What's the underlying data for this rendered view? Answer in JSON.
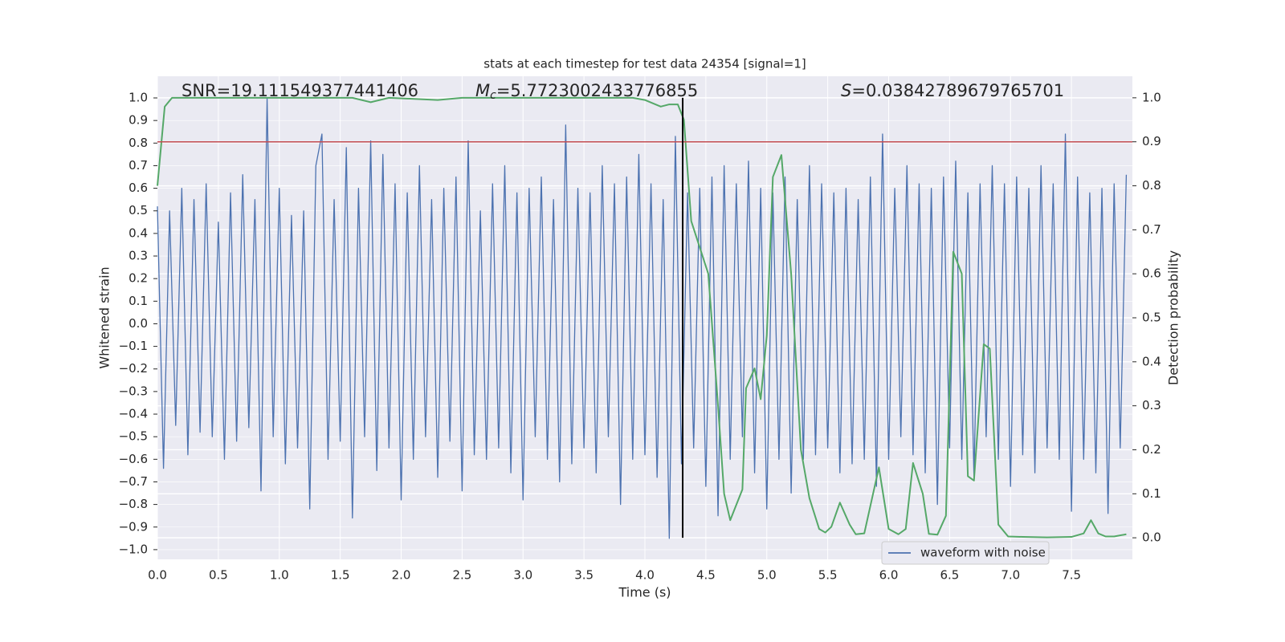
{
  "chart_data": {
    "type": "line",
    "title": "stats at each timestep for test data 24354 [signal=1]",
    "xlabel": "Time (s)",
    "ylabel": "Whitened strain",
    "y2label": "Detection probability",
    "annotations": [
      {
        "text": "SNR=19.111549377441406"
      },
      {
        "symbol": "M",
        "subscript": "c",
        "text": "=5.7723002433776855"
      },
      {
        "symbol": "S",
        "text": "=0.03842789679765701"
      }
    ],
    "xlim": [
      0,
      8
    ],
    "xticks": [
      {
        "value": 0,
        "label": "0.0"
      },
      0.5,
      {
        "value": 1,
        "label": "1.0"
      },
      1.5,
      {
        "value": 2,
        "label": "2.0"
      },
      2.5,
      {
        "value": 3,
        "label": "3.0"
      },
      3.5,
      {
        "value": 4,
        "label": "4.0"
      },
      4.5,
      {
        "value": 5,
        "label": "5.0"
      },
      5.5,
      {
        "value": 6,
        "label": "6.0"
      },
      6.5,
      {
        "value": 7,
        "label": "7.0"
      },
      7.5
    ],
    "ylim": [
      -1.043,
      1.096
    ],
    "yticks": [
      {
        "value": -1,
        "label": "−1.0"
      },
      {
        "value": -0.9,
        "label": "−0.9"
      },
      {
        "value": -0.8,
        "label": "−0.8"
      },
      {
        "value": -0.7,
        "label": "−0.7"
      },
      {
        "value": -0.6,
        "label": "−0.6"
      },
      {
        "value": -0.5,
        "label": "−0.5"
      },
      {
        "value": -0.4,
        "label": "−0.4"
      },
      {
        "value": -0.3,
        "label": "−0.3"
      },
      {
        "value": -0.2,
        "label": "−0.2"
      },
      {
        "value": -0.1,
        "label": "−0.1"
      },
      {
        "value": 0,
        "label": "0.0"
      },
      0.1,
      0.2,
      0.3,
      0.4,
      0.5,
      0.6,
      0.7,
      0.8,
      0.9,
      {
        "value": 1,
        "label": "1.0"
      }
    ],
    "y2lim": [
      -0.049,
      1.049
    ],
    "y2ticks": [
      {
        "value": 0,
        "label": "0.0"
      },
      0.1,
      0.2,
      0.3,
      0.4,
      0.5,
      0.6,
      0.7,
      0.8,
      0.9,
      {
        "value": 1,
        "label": "1.0"
      }
    ],
    "grid": true,
    "legend": "lower right",
    "threshold": {
      "value": 0.9,
      "axis": "y2",
      "color": "#c44e52"
    },
    "marker_x": 4.31,
    "series": [
      {
        "name": "waveform with noise",
        "color": "#4c72b0",
        "x": [
          0,
          0.05,
          0.1,
          0.15,
          0.2,
          0.25,
          0.3,
          0.35,
          0.4,
          0.45,
          0.5,
          0.55,
          0.6,
          0.65,
          0.7,
          0.75,
          0.8,
          0.85,
          0.9,
          0.95,
          1,
          1.05,
          1.1,
          1.15,
          1.2,
          1.25,
          1.3,
          1.35,
          1.4,
          1.45,
          1.5,
          1.55,
          1.6,
          1.65,
          1.7,
          1.75,
          1.8,
          1.85,
          1.9,
          1.95,
          2,
          2.05,
          2.1,
          2.15,
          2.2,
          2.25,
          2.3,
          2.35,
          2.4,
          2.45,
          2.5,
          2.55,
          2.6,
          2.65,
          2.7,
          2.75,
          2.8,
          2.85,
          2.9,
          2.95,
          3,
          3.05,
          3.1,
          3.15,
          3.2,
          3.25,
          3.3,
          3.35,
          3.4,
          3.45,
          3.5,
          3.55,
          3.6,
          3.65,
          3.7,
          3.75,
          3.8,
          3.85,
          3.9,
          3.95,
          4,
          4.05,
          4.1,
          4.15,
          4.2,
          4.25,
          4.3,
          4.35,
          4.4,
          4.45,
          4.5,
          4.55,
          4.6,
          4.65,
          4.7,
          4.75,
          4.8,
          4.85,
          4.9,
          4.95,
          5,
          5.05,
          5.1,
          5.15,
          5.2,
          5.25,
          5.3,
          5.35,
          5.4,
          5.45,
          5.5,
          5.55,
          5.6,
          5.65,
          5.7,
          5.75,
          5.8,
          5.85,
          5.9,
          5.95,
          6,
          6.05,
          6.1,
          6.15,
          6.2,
          6.25,
          6.3,
          6.35,
          6.4,
          6.45,
          6.5,
          6.55,
          6.6,
          6.65,
          6.7,
          6.75,
          6.8,
          6.85,
          6.9,
          6.95,
          7,
          7.05,
          7.1,
          7.15,
          7.2,
          7.25,
          7.3,
          7.35,
          7.4,
          7.45,
          7.5,
          7.55,
          7.6,
          7.65,
          7.7,
          7.75,
          7.8,
          7.85,
          7.9,
          7.95
        ],
        "values": [
          0.52,
          -0.64,
          0.5,
          -0.45,
          0.6,
          -0.58,
          0.55,
          -0.48,
          0.62,
          -0.5,
          0.45,
          -0.6,
          0.58,
          -0.52,
          0.66,
          -0.46,
          0.55,
          -0.74,
          1.0,
          -0.5,
          0.6,
          -0.62,
          0.48,
          -0.55,
          0.5,
          -0.82,
          0.7,
          0.84,
          -0.6,
          0.55,
          -0.52,
          0.78,
          -0.86,
          0.6,
          -0.5,
          0.81,
          -0.65,
          0.75,
          -0.55,
          0.62,
          -0.78,
          0.58,
          -0.6,
          0.7,
          -0.5,
          0.55,
          -0.68,
          0.6,
          -0.52,
          0.65,
          -0.74,
          0.81,
          -0.58,
          0.5,
          -0.6,
          0.62,
          -0.55,
          0.7,
          -0.66,
          0.58,
          -0.78,
          0.6,
          -0.5,
          0.65,
          -0.6,
          0.55,
          -0.7,
          0.88,
          -0.62,
          0.6,
          -0.55,
          0.58,
          -0.66,
          0.7,
          -0.5,
          0.62,
          -0.8,
          0.65,
          -0.6,
          0.75,
          -0.58,
          0.62,
          -0.68,
          0.55,
          -0.95,
          0.83,
          -0.62,
          0.58,
          -0.55,
          0.6,
          -0.72,
          0.65,
          -0.85,
          0.7,
          -0.6,
          0.62,
          -0.5,
          0.72,
          -0.66,
          0.6,
          -0.82,
          0.58,
          -0.6,
          0.65,
          -0.75,
          0.55,
          -0.6,
          0.7,
          -0.58,
          0.62,
          -0.55,
          0.58,
          -0.66,
          0.6,
          -0.62,
          0.55,
          -0.6,
          0.65,
          -0.72,
          0.84,
          -0.6,
          0.6,
          -0.5,
          0.7,
          -0.58,
          0.62,
          -0.66,
          0.6,
          -0.8,
          0.65,
          -0.55,
          0.72,
          -0.6,
          0.58,
          -0.68,
          0.62,
          -0.5,
          0.7,
          -0.6,
          0.62,
          -0.72,
          0.65,
          -0.58,
          0.6,
          -0.66,
          0.7,
          -0.55,
          0.62,
          -0.6,
          0.84,
          -0.83,
          0.65,
          -0.6,
          0.58,
          -0.66,
          0.6,
          -0.84,
          0.62,
          -0.55,
          0.66
        ]
      },
      {
        "color": "#55a868",
        "axis": "y2",
        "x": [
          0,
          0.06,
          0.12,
          0.4,
          0.8,
          1.2,
          1.6,
          1.75,
          1.9,
          2.3,
          2.5,
          3.0,
          3.5,
          3.9,
          4.0,
          4.13,
          4.2,
          4.27,
          4.32,
          4.38,
          4.45,
          4.52,
          4.6,
          4.65,
          4.7,
          4.8,
          4.83,
          4.9,
          4.95,
          5.0,
          5.05,
          5.12,
          5.2,
          5.28,
          5.35,
          5.43,
          5.48,
          5.53,
          5.6,
          5.68,
          5.73,
          5.8,
          5.92,
          6.0,
          6.08,
          6.14,
          6.2,
          6.28,
          6.33,
          6.4,
          6.47,
          6.53,
          6.6,
          6.65,
          6.7,
          6.78,
          6.83,
          6.9,
          6.98,
          7.1,
          7.3,
          7.5,
          7.6,
          7.66,
          7.72,
          7.78,
          7.85,
          7.95
        ],
        "values": [
          0.8,
          0.98,
          1.0,
          1.0,
          1.0,
          1.0,
          1.0,
          0.99,
          1.0,
          0.995,
          1.0,
          1.0,
          1.0,
          1.0,
          0.995,
          0.98,
          0.985,
          0.985,
          0.95,
          0.72,
          0.66,
          0.6,
          0.3,
          0.1,
          0.04,
          0.11,
          0.34,
          0.385,
          0.315,
          0.46,
          0.82,
          0.87,
          0.6,
          0.2,
          0.09,
          0.02,
          0.012,
          0.025,
          0.08,
          0.03,
          0.008,
          0.01,
          0.16,
          0.02,
          0.008,
          0.02,
          0.17,
          0.1,
          0.009,
          0.007,
          0.05,
          0.65,
          0.6,
          0.14,
          0.13,
          0.44,
          0.43,
          0.03,
          0.003,
          0.002,
          0.001,
          0.002,
          0.01,
          0.04,
          0.01,
          0.003,
          0.003,
          0.008
        ]
      }
    ]
  }
}
